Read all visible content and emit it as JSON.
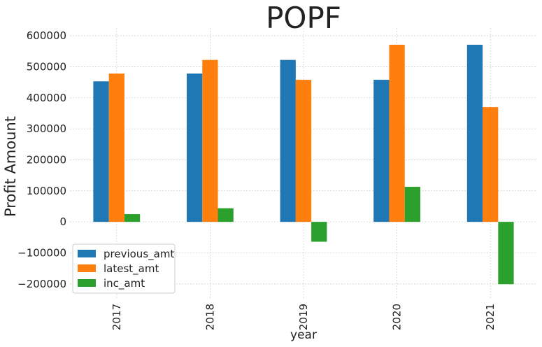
{
  "chart_data": {
    "type": "bar",
    "title": "POPF",
    "xlabel": "year",
    "ylabel": "Profit Amount",
    "categories": [
      "2017",
      "2018",
      "2019",
      "2020",
      "2021"
    ],
    "series": [
      {
        "name": "previous_amt",
        "color": "#1f77b4",
        "values": [
          453000,
          478000,
          522000,
          458000,
          571000
        ]
      },
      {
        "name": "latest_amt",
        "color": "#ff7f0e",
        "values": [
          478000,
          522000,
          458000,
          571000,
          370000
        ]
      },
      {
        "name": "inc_amt",
        "color": "#2ca02c",
        "values": [
          25000,
          44000,
          -64000,
          113000,
          -201000
        ]
      }
    ],
    "ylim": [
      -250000,
      625000
    ],
    "yticks": [
      -200000,
      -100000,
      0,
      100000,
      200000,
      300000,
      400000,
      500000,
      600000
    ],
    "ytick_labels": [
      "−200000",
      "−100000",
      "0",
      "100000",
      "200000",
      "300000",
      "400000",
      "500000",
      "600000"
    ],
    "grid": true,
    "legend_position": "lower-left"
  }
}
